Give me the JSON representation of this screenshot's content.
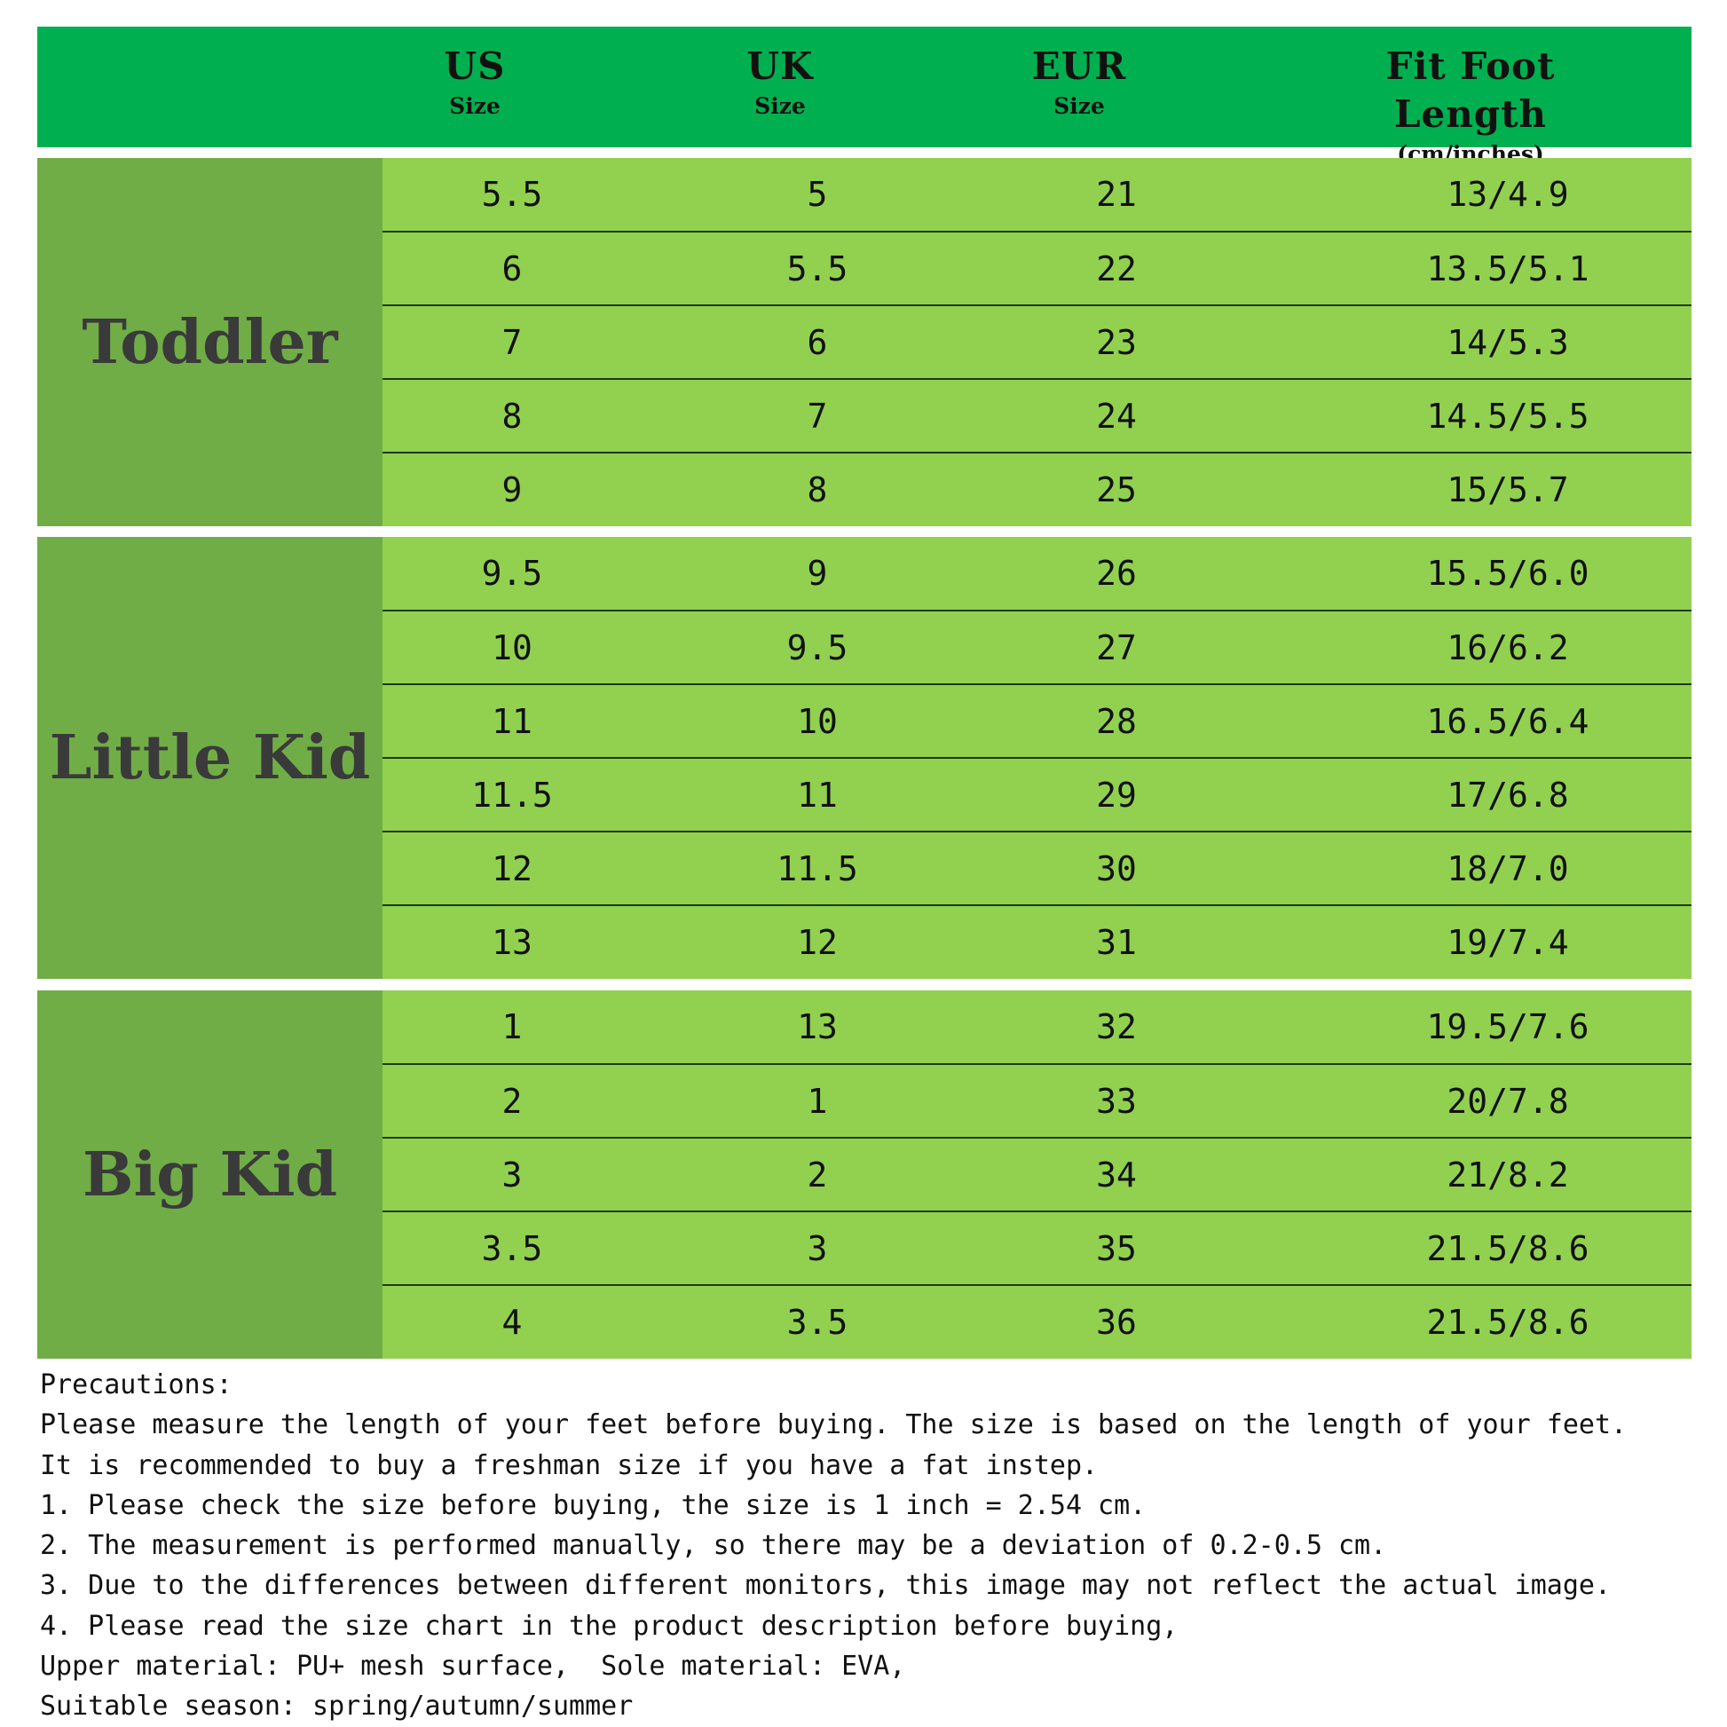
{
  "colors": {
    "header": "#00b050",
    "group_label": "#70ad47",
    "rows": "#92d050"
  },
  "header": [
    {
      "main": "US",
      "sub": "Size"
    },
    {
      "main": "UK",
      "sub": "Size"
    },
    {
      "main": "EUR",
      "sub": "Size"
    },
    {
      "main": "Fit Foot Length",
      "sub": "(cm/inches)"
    }
  ],
  "groups": [
    {
      "label": "Toddler",
      "rows": [
        [
          "5.5",
          "5",
          "21",
          "13/4.9"
        ],
        [
          "6",
          "5.5",
          "22",
          "13.5/5.1"
        ],
        [
          "7",
          "6",
          "23",
          "14/5.3"
        ],
        [
          "8",
          "7",
          "24",
          "14.5/5.5"
        ],
        [
          "9",
          "8",
          "25",
          "15/5.7"
        ]
      ]
    },
    {
      "label": "Little Kid",
      "rows": [
        [
          "9.5",
          "9",
          "26",
          "15.5/6.0"
        ],
        [
          "10",
          "9.5",
          "27",
          "16/6.2"
        ],
        [
          "11",
          "10",
          "28",
          "16.5/6.4"
        ],
        [
          "11.5",
          "11",
          "29",
          "17/6.8"
        ],
        [
          "12",
          "11.5",
          "30",
          "18/7.0"
        ],
        [
          "13",
          "12",
          "31",
          "19/7.4"
        ]
      ]
    },
    {
      "label": "Big Kid",
      "rows": [
        [
          "1",
          "13",
          "32",
          "19.5/7.6"
        ],
        [
          "2",
          "1",
          "33",
          "20/7.8"
        ],
        [
          "3",
          "2",
          "34",
          "21/8.2"
        ],
        [
          "3.5",
          "3",
          "35",
          "21.5/8.6"
        ],
        [
          "4",
          "3.5",
          "36",
          "21.5/8.6"
        ]
      ]
    }
  ],
  "notes": [
    "Precautions:",
    "Please measure the length of your feet before buying. The size is based on the length of your feet.",
    "It is recommended to buy a freshman size if you have a fat instep.",
    "1. Please check the size before buying, the size is 1 inch = 2.54 cm.",
    "2. The measurement is performed manually, so there may be a deviation of 0.2-0.5 cm.",
    "3. Due to the differences between different monitors, this image may not reflect the actual image.",
    "4. Please read the size chart in the product description before buying,",
    "Upper material: PU+ mesh surface,  Sole material: EVA,",
    "Suitable season: spring/autumn/summer"
  ]
}
